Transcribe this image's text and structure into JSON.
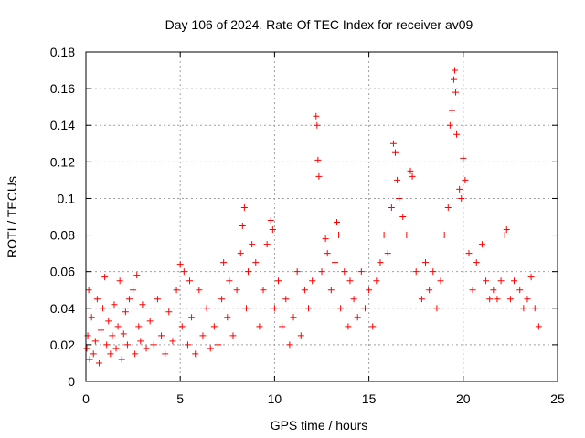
{
  "chart_data": {
    "type": "scatter",
    "title": "Day 106 of 2024, Rate Of TEC Index for receiver av09",
    "xlabel": "GPS time / hours",
    "ylabel": "ROTI / TECUs",
    "xlim": [
      0,
      25
    ],
    "ylim": [
      0,
      0.18
    ],
    "x_ticks": [
      0,
      5,
      10,
      15,
      20,
      25
    ],
    "y_ticks": [
      0,
      0.02,
      0.04,
      0.06,
      0.08,
      0.1,
      0.12,
      0.14,
      0.16,
      0.18
    ],
    "x_tick_labels": [
      "0",
      "5",
      "10",
      "15",
      "20",
      "25"
    ],
    "y_tick_labels": [
      "0",
      "0.02",
      "0.04",
      "0.06",
      "0.08",
      "0.1",
      "0.12",
      "0.14",
      "0.16",
      "0.18"
    ],
    "grid": true,
    "marker": "+",
    "marker_color": "#ff0000",
    "series": [
      {
        "points": [
          [
            0.05,
            0.018
          ],
          [
            0.1,
            0.025
          ],
          [
            0.15,
            0.05
          ],
          [
            0.2,
            0.012
          ],
          [
            0.3,
            0.035
          ],
          [
            0.4,
            0.015
          ],
          [
            0.5,
            0.022
          ],
          [
            0.6,
            0.045
          ],
          [
            0.7,
            0.01
          ],
          [
            0.8,
            0.028
          ],
          [
            0.9,
            0.04
          ],
          [
            1.0,
            0.057
          ],
          [
            1.1,
            0.02
          ],
          [
            1.2,
            0.033
          ],
          [
            1.3,
            0.015
          ],
          [
            1.4,
            0.025
          ],
          [
            1.5,
            0.042
          ],
          [
            1.6,
            0.018
          ],
          [
            1.7,
            0.03
          ],
          [
            1.8,
            0.055
          ],
          [
            1.9,
            0.012
          ],
          [
            2.0,
            0.026
          ],
          [
            2.1,
            0.038
          ],
          [
            2.2,
            0.02
          ],
          [
            2.3,
            0.045
          ],
          [
            2.5,
            0.05
          ],
          [
            2.6,
            0.015
          ],
          [
            2.7,
            0.058
          ],
          [
            2.8,
            0.03
          ],
          [
            2.9,
            0.022
          ],
          [
            3.0,
            0.042
          ],
          [
            3.2,
            0.018
          ],
          [
            3.4,
            0.033
          ],
          [
            3.6,
            0.02
          ],
          [
            3.8,
            0.045
          ],
          [
            4.0,
            0.025
          ],
          [
            4.2,
            0.015
          ],
          [
            4.4,
            0.038
          ],
          [
            4.6,
            0.022
          ],
          [
            4.8,
            0.05
          ],
          [
            5.0,
            0.064
          ],
          [
            5.1,
            0.03
          ],
          [
            5.2,
            0.06
          ],
          [
            5.4,
            0.02
          ],
          [
            5.5,
            0.055
          ],
          [
            5.6,
            0.035
          ],
          [
            5.8,
            0.015
          ],
          [
            6.0,
            0.05
          ],
          [
            6.2,
            0.025
          ],
          [
            6.4,
            0.04
          ],
          [
            6.6,
            0.018
          ],
          [
            6.8,
            0.03
          ],
          [
            7.0,
            0.02
          ],
          [
            7.2,
            0.045
          ],
          [
            7.3,
            0.065
          ],
          [
            7.5,
            0.035
          ],
          [
            7.6,
            0.055
          ],
          [
            7.8,
            0.025
          ],
          [
            8.0,
            0.05
          ],
          [
            8.2,
            0.07
          ],
          [
            8.3,
            0.085
          ],
          [
            8.4,
            0.095
          ],
          [
            8.5,
            0.04
          ],
          [
            8.6,
            0.06
          ],
          [
            8.8,
            0.075
          ],
          [
            9.0,
            0.065
          ],
          [
            9.2,
            0.03
          ],
          [
            9.4,
            0.05
          ],
          [
            9.6,
            0.075
          ],
          [
            9.8,
            0.088
          ],
          [
            9.9,
            0.083
          ],
          [
            10.0,
            0.04
          ],
          [
            10.2,
            0.055
          ],
          [
            10.4,
            0.03
          ],
          [
            10.6,
            0.045
          ],
          [
            10.8,
            0.02
          ],
          [
            11.0,
            0.035
          ],
          [
            11.2,
            0.06
          ],
          [
            11.4,
            0.025
          ],
          [
            11.6,
            0.05
          ],
          [
            11.8,
            0.04
          ],
          [
            12.0,
            0.055
          ],
          [
            12.2,
            0.145
          ],
          [
            12.25,
            0.14
          ],
          [
            12.3,
            0.121
          ],
          [
            12.35,
            0.112
          ],
          [
            12.5,
            0.06
          ],
          [
            12.7,
            0.078
          ],
          [
            12.8,
            0.07
          ],
          [
            13.0,
            0.05
          ],
          [
            13.2,
            0.065
          ],
          [
            13.3,
            0.087
          ],
          [
            13.4,
            0.08
          ],
          [
            13.5,
            0.04
          ],
          [
            13.7,
            0.06
          ],
          [
            13.9,
            0.03
          ],
          [
            14.0,
            0.055
          ],
          [
            14.2,
            0.045
          ],
          [
            14.4,
            0.035
          ],
          [
            14.6,
            0.06
          ],
          [
            14.8,
            0.04
          ],
          [
            15.0,
            0.05
          ],
          [
            15.2,
            0.03
          ],
          [
            15.4,
            0.055
          ],
          [
            15.6,
            0.065
          ],
          [
            15.8,
            0.08
          ],
          [
            16.0,
            0.07
          ],
          [
            16.2,
            0.095
          ],
          [
            16.3,
            0.13
          ],
          [
            16.4,
            0.125
          ],
          [
            16.5,
            0.11
          ],
          [
            16.6,
            0.1
          ],
          [
            16.8,
            0.09
          ],
          [
            17.0,
            0.08
          ],
          [
            17.2,
            0.115
          ],
          [
            17.3,
            0.112
          ],
          [
            17.5,
            0.06
          ],
          [
            17.8,
            0.045
          ],
          [
            18.0,
            0.065
          ],
          [
            18.2,
            0.05
          ],
          [
            18.4,
            0.06
          ],
          [
            18.6,
            0.04
          ],
          [
            18.8,
            0.055
          ],
          [
            19.0,
            0.08
          ],
          [
            19.2,
            0.095
          ],
          [
            19.3,
            0.14
          ],
          [
            19.4,
            0.148
          ],
          [
            19.5,
            0.165
          ],
          [
            19.55,
            0.17
          ],
          [
            19.6,
            0.158
          ],
          [
            19.65,
            0.135
          ],
          [
            19.8,
            0.105
          ],
          [
            19.9,
            0.1
          ],
          [
            20.0,
            0.122
          ],
          [
            20.1,
            0.11
          ],
          [
            20.3,
            0.07
          ],
          [
            20.5,
            0.05
          ],
          [
            20.7,
            0.065
          ],
          [
            21.0,
            0.075
          ],
          [
            21.2,
            0.055
          ],
          [
            21.4,
            0.045
          ],
          [
            21.6,
            0.05
          ],
          [
            21.8,
            0.045
          ],
          [
            22.0,
            0.055
          ],
          [
            22.2,
            0.08
          ],
          [
            22.3,
            0.083
          ],
          [
            22.5,
            0.045
          ],
          [
            22.7,
            0.055
          ],
          [
            23.0,
            0.05
          ],
          [
            23.2,
            0.04
          ],
          [
            23.4,
            0.045
          ],
          [
            23.6,
            0.057
          ],
          [
            23.8,
            0.04
          ],
          [
            24.0,
            0.03
          ]
        ]
      }
    ]
  }
}
